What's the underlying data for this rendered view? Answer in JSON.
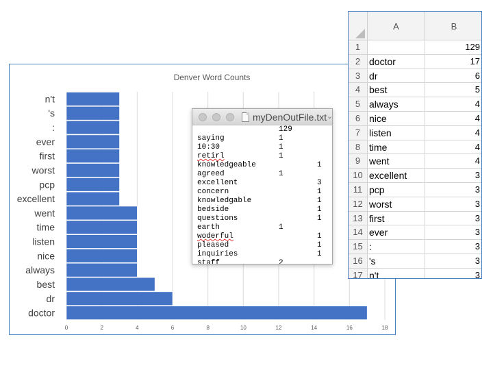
{
  "chart_data": {
    "type": "bar",
    "orientation": "horizontal",
    "title": "Denver Word Counts",
    "categories": [
      "n't",
      "'s",
      ":",
      "ever",
      "first",
      "worst",
      "pcp",
      "excellent",
      "went",
      "time",
      "listen",
      "nice",
      "always",
      "best",
      "dr",
      "doctor"
    ],
    "values": [
      3,
      3,
      3,
      3,
      3,
      3,
      3,
      3,
      4,
      4,
      4,
      4,
      4,
      5,
      6,
      17
    ],
    "xlim": [
      0,
      18
    ],
    "xticks": [
      "0",
      "2",
      "4",
      "6",
      "8",
      "10",
      "12",
      "14",
      "16",
      "18"
    ],
    "grid": true,
    "bar_color": "#4472c4"
  },
  "text_window": {
    "title": "myDenOutFile.txt",
    "lines": [
      {
        "word": "",
        "c1": "129",
        "c2": ""
      },
      {
        "word": "saying",
        "c1": "1",
        "c2": ""
      },
      {
        "word": "10:30",
        "c1": "1",
        "c2": ""
      },
      {
        "word": "retirl",
        "c1": "1",
        "c2": ""
      },
      {
        "word": "knowledgeable",
        "c1": "",
        "c2": "1"
      },
      {
        "word": "agreed",
        "c1": "1",
        "c2": ""
      },
      {
        "word": "excellent",
        "c1": "",
        "c2": "3"
      },
      {
        "word": "concern",
        "c1": "",
        "c2": "1"
      },
      {
        "word": "knowledgable",
        "c1": "",
        "c2": "1"
      },
      {
        "word": "bedside",
        "c1": "",
        "c2": "1"
      },
      {
        "word": "questions",
        "c1": "",
        "c2": "1"
      },
      {
        "word": "earth",
        "c1": "1",
        "c2": ""
      },
      {
        "word": "woderful",
        "c1": "",
        "c2": "1"
      },
      {
        "word": "pleased",
        "c1": "",
        "c2": "1"
      },
      {
        "word": "inquiries",
        "c1": "",
        "c2": "1"
      },
      {
        "word": "staff",
        "c1": "2",
        "c2": ""
      }
    ]
  },
  "spreadsheet": {
    "columns": [
      "A",
      "B"
    ],
    "rows": [
      {
        "num": "1",
        "a": "",
        "b": "129"
      },
      {
        "num": "2",
        "a": "doctor",
        "b": "17"
      },
      {
        "num": "3",
        "a": "dr",
        "b": "6"
      },
      {
        "num": "4",
        "a": "best",
        "b": "5"
      },
      {
        "num": "5",
        "a": "always",
        "b": "4"
      },
      {
        "num": "6",
        "a": "nice",
        "b": "4"
      },
      {
        "num": "7",
        "a": "listen",
        "b": "4"
      },
      {
        "num": "8",
        "a": "time",
        "b": "4"
      },
      {
        "num": "9",
        "a": "went",
        "b": "4"
      },
      {
        "num": "10",
        "a": "excellent",
        "b": "3"
      },
      {
        "num": "11",
        "a": "pcp",
        "b": "3"
      },
      {
        "num": "12",
        "a": "worst",
        "b": "3"
      },
      {
        "num": "13",
        "a": "first",
        "b": "3"
      },
      {
        "num": "14",
        "a": "ever",
        "b": "3"
      },
      {
        "num": "15",
        "a": ":",
        "b": "3"
      },
      {
        "num": "16",
        "a": "'s",
        "b": "3"
      },
      {
        "num": "17",
        "a": "n't",
        "b": "3"
      }
    ]
  }
}
